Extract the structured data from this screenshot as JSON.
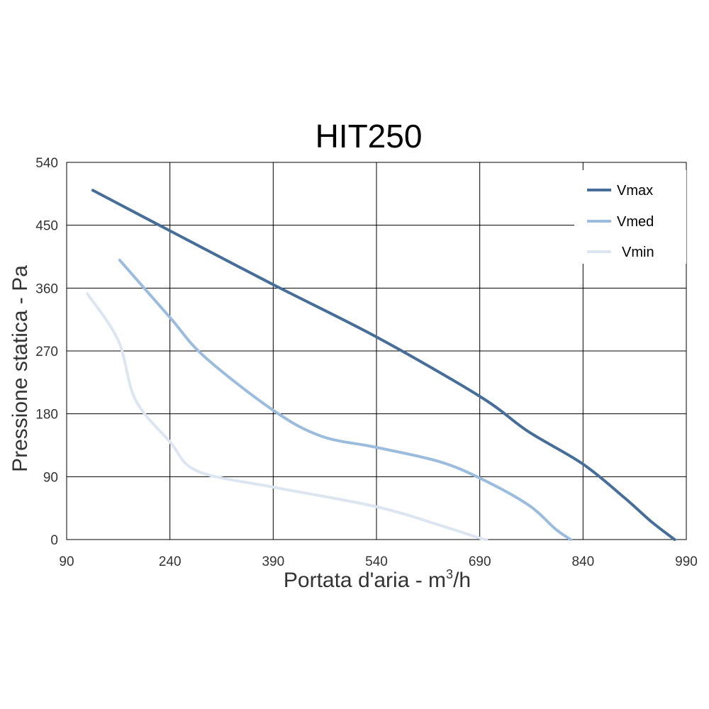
{
  "chart_data": {
    "type": "line",
    "title": "HIT250",
    "xlabel": "Portata d'aria - m",
    "xlabel_sup": "3",
    "xlabel_suffix": "/h",
    "ylabel": "Pressione statica - Pa",
    "xlim": [
      90,
      990
    ],
    "ylim": [
      0,
      540
    ],
    "xticks": [
      "90",
      "240",
      "390",
      "540",
      "690",
      "840",
      "990"
    ],
    "yticks": [
      "0",
      "90",
      "180",
      "270",
      "360",
      "450",
      "540"
    ],
    "grid": true,
    "legend_position": "top-right",
    "series": [
      {
        "name": "Vmax",
        "color": "#466e99",
        "x": [
          128,
          240,
          390,
          540,
          690,
          760,
          840,
          900,
          940,
          973
        ],
        "y": [
          500,
          442,
          365,
          290,
          205,
          155,
          108,
          60,
          25,
          0
        ]
      },
      {
        "name": "Vmed",
        "color": "#9bbcdd",
        "x": [
          167,
          240,
          290,
          390,
          460,
          540,
          630,
          690,
          760,
          800,
          822
        ],
        "y": [
          400,
          318,
          262,
          185,
          148,
          132,
          112,
          88,
          50,
          15,
          0
        ]
      },
      {
        "name": "Vmin",
        "color": "#dde6f0",
        "x": [
          120,
          165,
          190,
          240,
          280,
          390,
          540,
          640,
          690,
          700
        ],
        "y": [
          352,
          285,
          200,
          140,
          98,
          75,
          47,
          18,
          2,
          0
        ]
      }
    ]
  }
}
